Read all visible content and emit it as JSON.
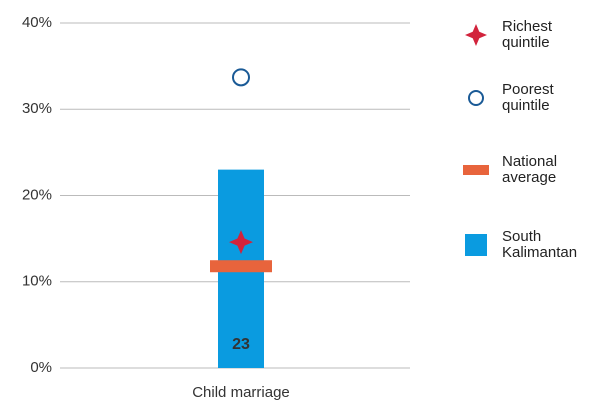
{
  "chart_data": {
    "type": "bar",
    "categories": [
      "Child marriage"
    ],
    "ylim": [
      0,
      40
    ],
    "yticks": [
      {
        "value": 0,
        "label": "0%"
      },
      {
        "value": 10,
        "label": "10%"
      },
      {
        "value": 20,
        "label": "20%"
      },
      {
        "value": 30,
        "label": "30%"
      },
      {
        "value": 40,
        "label": "40%"
      }
    ],
    "grid": true,
    "series": [
      {
        "name": "Richest quintile",
        "color": "#d2233c",
        "marker": "star",
        "values": [
          14.6
        ]
      },
      {
        "name": "Poorest quintile",
        "color": "#1a5a96",
        "marker": "circle",
        "values": [
          33.7
        ]
      },
      {
        "name": "National average",
        "color": "#e8643c",
        "marker": "dash",
        "values": [
          11.8
        ]
      },
      {
        "name": "South Kalimantan",
        "color": "#0a9be0",
        "marker": "bar",
        "values": [
          23
        ],
        "value_labels": [
          "23"
        ]
      }
    ]
  }
}
